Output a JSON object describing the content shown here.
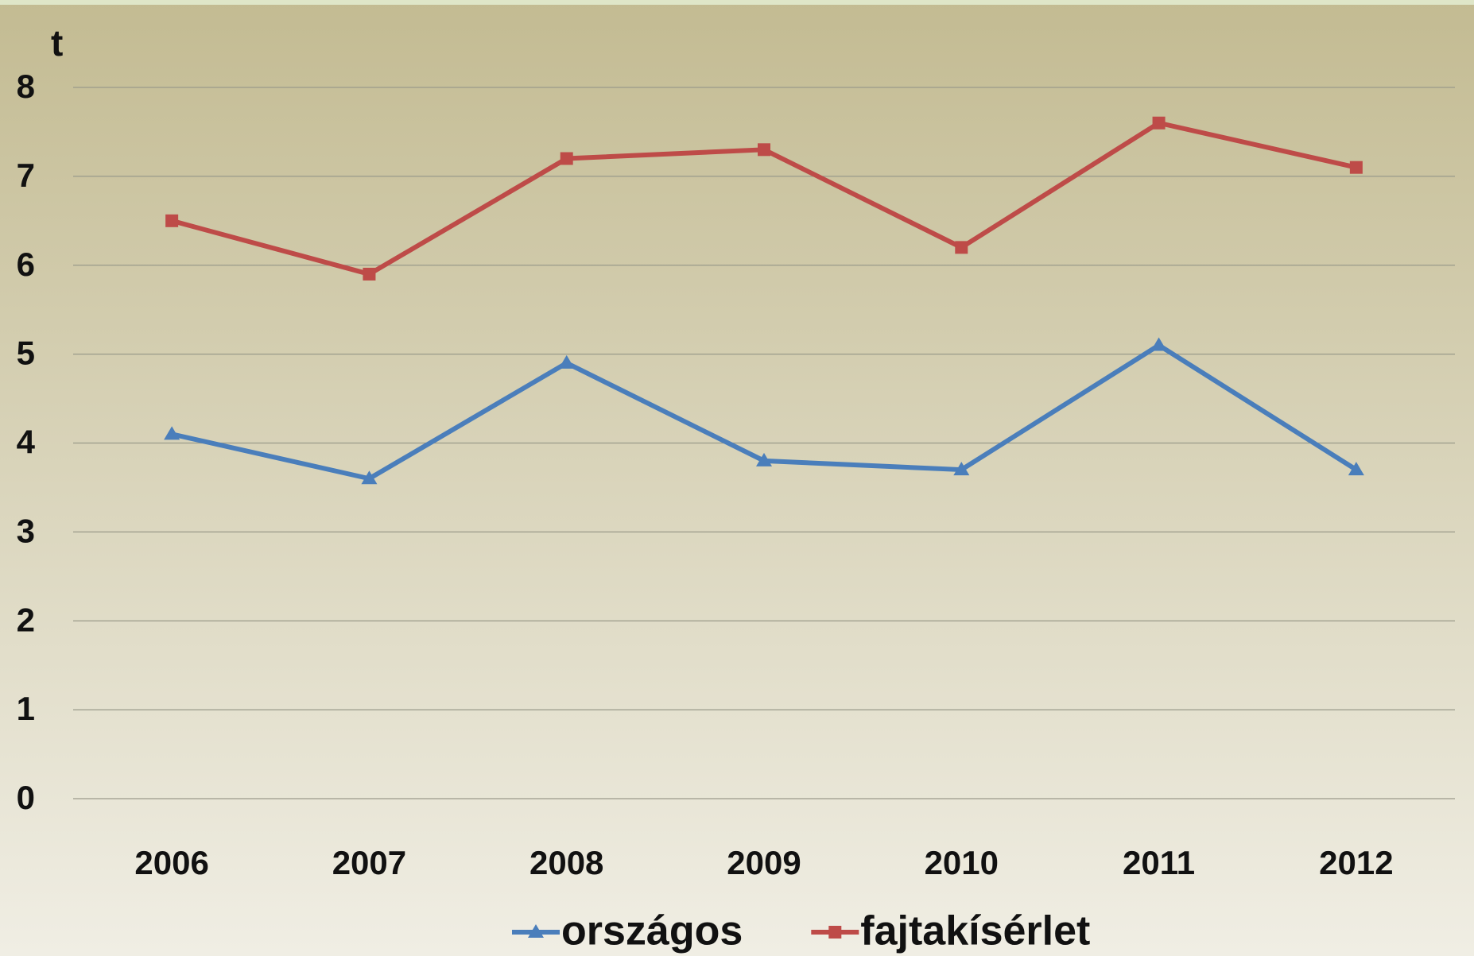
{
  "chart_data": {
    "type": "line",
    "y_label": "t",
    "categories": [
      "2006",
      "2007",
      "2008",
      "2009",
      "2010",
      "2011",
      "2012"
    ],
    "series": [
      {
        "name": "országos",
        "color": "#4a7ebb",
        "marker": "triangle",
        "values": [
          4.1,
          3.6,
          4.9,
          3.8,
          3.7,
          5.1,
          3.7
        ]
      },
      {
        "name": "fajtakísérlet",
        "color": "#be4b48",
        "marker": "square",
        "values": [
          6.5,
          5.9,
          7.2,
          7.3,
          6.2,
          7.6,
          7.1
        ]
      }
    ],
    "ylim": [
      0,
      8
    ],
    "yticks": [
      0,
      1,
      2,
      3,
      4,
      5,
      6,
      7,
      8
    ],
    "grid": true,
    "legend": "bottom"
  }
}
